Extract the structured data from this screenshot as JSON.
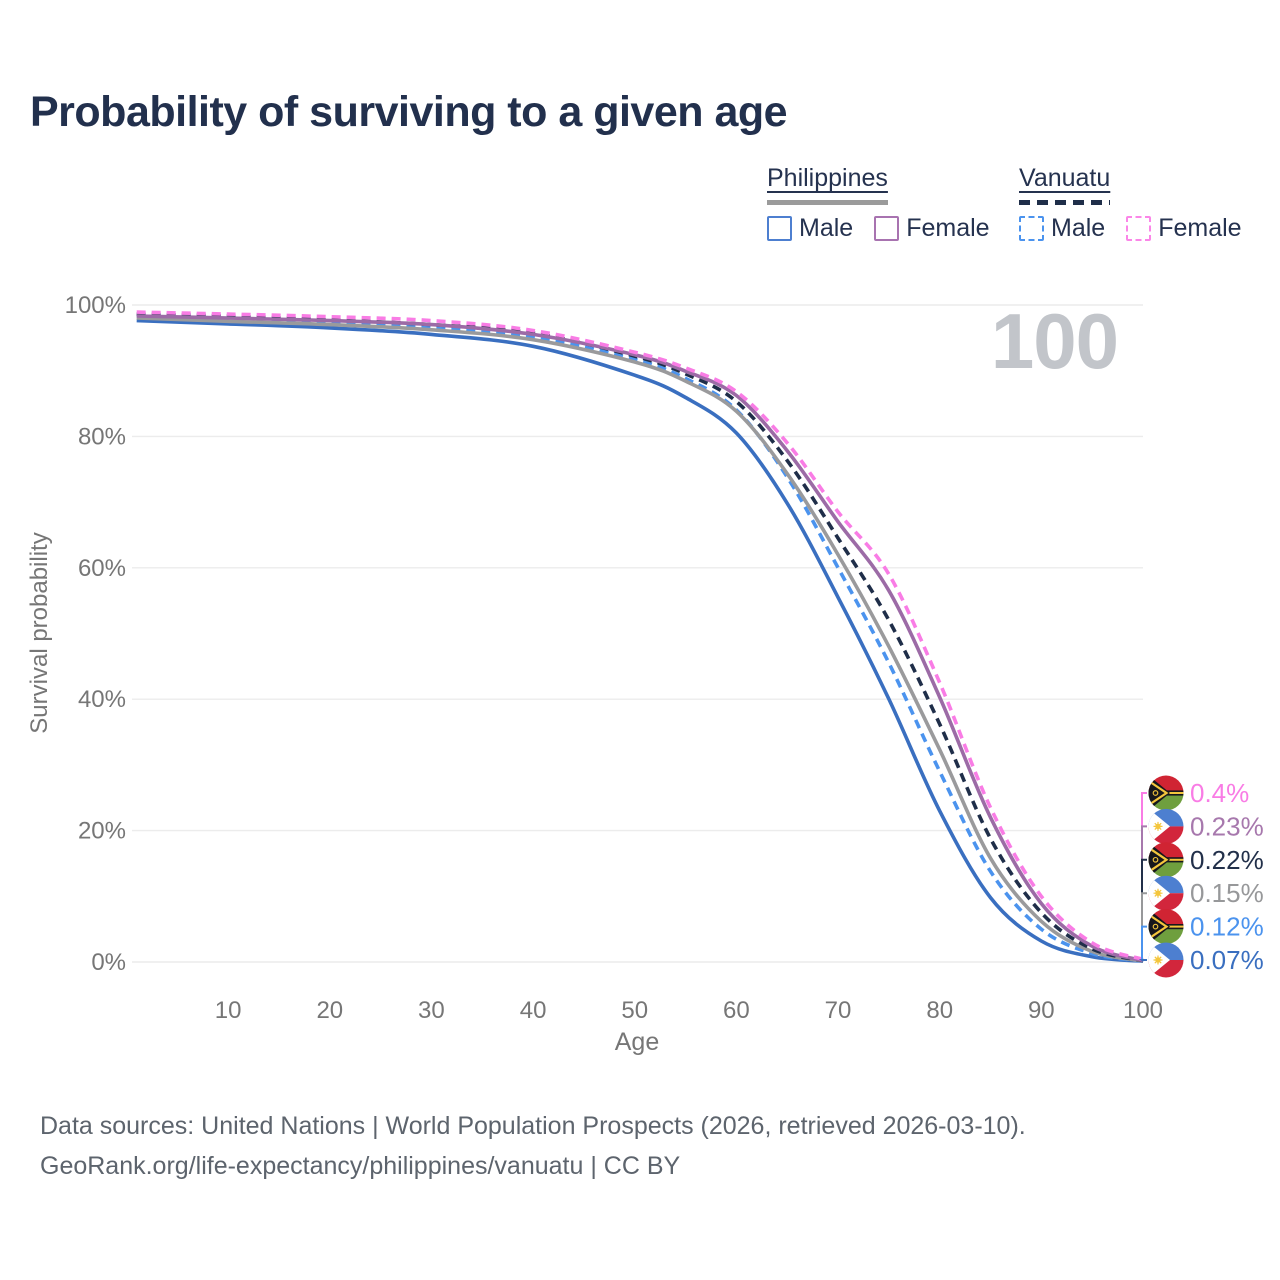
{
  "title": "Probability of surviving to a given age",
  "legend": {
    "philippines": {
      "label": "Philippines",
      "male": "Male",
      "female": "Female"
    },
    "vanuatu": {
      "label": "Vanuatu",
      "male": "Male",
      "female": "Female"
    }
  },
  "watermark": "100",
  "colors": {
    "philippines_male": "#3a6fc0",
    "vanuatu_male": "#4b93ee",
    "philippines_total": "#9a9a9c",
    "vanuatu_total": "#1f2e49",
    "philippines_female": "#9c6ba6",
    "vanuatu_female": "#f97ce5",
    "title_text": "#22304d",
    "axis_text": "#767676",
    "gridline": "#ececec",
    "watermark_text": "#c2c5ca"
  },
  "chart_data": {
    "type": "line",
    "title": "Probability of surviving to a given age",
    "xlabel": "Age",
    "ylabel": "Survival probability",
    "xlim": [
      1,
      100
    ],
    "ylim": [
      0,
      100
    ],
    "grid": "horizontal only, every 20%",
    "legend_position": "top-right",
    "x_tick_labels": [
      "10",
      "20",
      "30",
      "40",
      "50",
      "60",
      "70",
      "80",
      "90",
      "100"
    ],
    "y_tick_labels": [
      "100%",
      "80%",
      "60%",
      "40%",
      "20%",
      "0%"
    ],
    "x": [
      1,
      10,
      20,
      30,
      40,
      50,
      55,
      60,
      65,
      70,
      75,
      80,
      85,
      90,
      95,
      100
    ],
    "series": [
      {
        "name": "Philippines Male",
        "color": "#3a6fc0",
        "dash": false,
        "values": [
          97.6,
          97.1,
          96.5,
          95.5,
          93.7,
          89.3,
          85.9,
          80.5,
          69.8,
          55.5,
          40.0,
          23.0,
          9.8,
          3.2,
          0.8,
          0.07
        ]
      },
      {
        "name": "Vanuatu Male",
        "color": "#4b93ee",
        "dash": true,
        "values": [
          98.5,
          98.1,
          97.4,
          96.6,
          95.1,
          91.7,
          88.8,
          84.0,
          73.8,
          60.0,
          45.5,
          29.0,
          13.8,
          5.0,
          1.3,
          0.12
        ]
      },
      {
        "name": "Philippines (both sexes)",
        "color": "#9a9a9c",
        "dash": false,
        "values": [
          98.0,
          97.5,
          97.0,
          96.2,
          94.7,
          91.3,
          88.4,
          83.8,
          74.3,
          62.0,
          48.0,
          32.3,
          15.8,
          6.2,
          1.6,
          0.15
        ]
      },
      {
        "name": "Vanuatu (both sexes)",
        "color": "#1f2e49",
        "dash": true,
        "values": [
          98.6,
          98.3,
          97.7,
          97.0,
          95.7,
          92.2,
          89.5,
          85.3,
          76.3,
          64.5,
          52.0,
          36.2,
          18.8,
          7.5,
          2.0,
          0.22
        ]
      },
      {
        "name": "Philippines Female",
        "color": "#9c6ba6",
        "dash": false,
        "values": [
          98.3,
          98.0,
          97.6,
          97.0,
          95.5,
          92.4,
          89.9,
          86.2,
          77.8,
          67.0,
          56.5,
          40.3,
          22.0,
          8.9,
          2.4,
          0.23
        ]
      },
      {
        "name": "Vanuatu Female",
        "color": "#f97ce5",
        "dash": true,
        "values": [
          98.9,
          98.6,
          98.2,
          97.6,
          96.1,
          92.8,
          90.4,
          86.8,
          79.0,
          68.5,
          59.0,
          42.5,
          23.5,
          10.0,
          2.9,
          0.4
        ]
      }
    ],
    "end_labels": [
      {
        "label": "0.4%",
        "country": "Vanuatu",
        "flag_ref": "#flag-vanuatu",
        "color": "#f97ce5"
      },
      {
        "label": "0.23%",
        "country": "Philippines",
        "flag_ref": "#flag-philippines",
        "color": "#a778ad"
      },
      {
        "label": "0.22%",
        "country": "Vanuatu",
        "flag_ref": "#flag-vanuatu",
        "color": "#22304a"
      },
      {
        "label": "0.15%",
        "country": "Philippines",
        "flag_ref": "#flag-philippines",
        "color": "#97989a"
      },
      {
        "label": "0.12%",
        "country": "Vanuatu",
        "flag_ref": "#flag-vanuatu",
        "color": "#4b93ee"
      },
      {
        "label": "0.07%",
        "country": "Philippines",
        "flag_ref": "#flag-philippines",
        "color": "#3a6fc0"
      }
    ],
    "watermark": "100"
  },
  "footer": {
    "line1": "Data sources: United Nations | World Population Prospects (2026, retrieved 2026-03-10).",
    "line2": "GeoRank.org/life-expectancy/philippines/vanuatu | CC BY"
  }
}
